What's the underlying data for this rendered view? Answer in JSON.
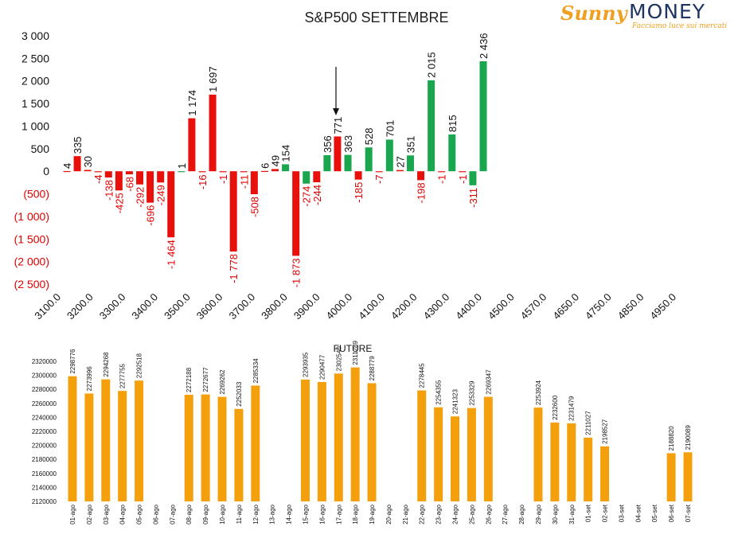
{
  "logo": {
    "brand_script": "Sunny",
    "brand_main": "MONEY",
    "tagline": "Facciamo luce sui mercati"
  },
  "colors": {
    "positive": "#1aa64e",
    "negative": "#e8100a",
    "future_bar": "#f4a00c",
    "axis_text": "#333333",
    "negative_axis_text": "#e00000"
  },
  "chart_data": [
    {
      "type": "bar",
      "title": "S&P500 SETTEMBRE",
      "x_tick_labels": [
        "3100.0",
        "3200.0",
        "3300.0",
        "3400.0",
        "3500.0",
        "3600.0",
        "3700.0",
        "3800.0",
        "3900.0",
        "4000.0",
        "4100.0",
        "4200.0",
        "4300.0",
        "4400.0",
        "4500.0",
        "4570.0",
        "4650.0",
        "4750.0",
        "4850.0",
        "4950.0"
      ],
      "y_tick_labels": [
        "3 000",
        "2 500",
        "2 000",
        "1 500",
        "1 000",
        "500",
        "0",
        "(500)",
        "(1 000)",
        "(1 500)",
        "(2 000)",
        "(2 500)"
      ],
      "ylim": [
        -2500,
        3000
      ],
      "grid": false,
      "values": [
        4,
        335,
        30,
        -4,
        -138,
        -425,
        -68,
        -292,
        -696,
        -249,
        -1464,
        1,
        1174,
        -16,
        1697,
        -1,
        -1778,
        -11,
        -508,
        6,
        49,
        154,
        -1873,
        -274,
        -244,
        356,
        771,
        363,
        -185,
        528,
        -7,
        701,
        27,
        351,
        -198,
        2015,
        -1,
        815,
        -1,
        -311,
        2436
      ],
      "labels": [
        "4",
        "335",
        "30",
        "-4",
        "-138",
        "-425",
        "-68",
        "-292",
        "-696",
        "-249",
        "-1 464",
        "1",
        "1 174",
        "-16",
        "1 697",
        "-1",
        "-1 778",
        "-11",
        "-508",
        "6",
        "49",
        "154",
        "-1 873",
        "-274",
        "-244",
        "356",
        "771",
        "363",
        "-185",
        "528",
        "-7",
        "701",
        "27",
        "351",
        "-198",
        "2 015",
        "-1",
        "815",
        "-1",
        "-311",
        "2 436"
      ],
      "colors": [
        "negative",
        "negative",
        "negative",
        "negative",
        "negative",
        "negative",
        "negative",
        "negative",
        "negative",
        "negative",
        "negative",
        "positive",
        "negative",
        "negative",
        "negative",
        "negative",
        "negative",
        "negative",
        "negative",
        "negative",
        "negative",
        "positive",
        "negative",
        "positive",
        "negative",
        "positive",
        "negative",
        "positive",
        "negative",
        "positive",
        "negative",
        "positive",
        "negative",
        "positive",
        "negative",
        "positive",
        "negative",
        "positive",
        "negative",
        "positive",
        "positive"
      ],
      "annotation": "arrow pointing down near 3950"
    },
    {
      "type": "bar",
      "title": "FUTURE",
      "categories": [
        "01-ago",
        "02-ago",
        "03-ago",
        "04-ago",
        "05-ago",
        "06-ago",
        "07-ago",
        "08-ago",
        "09-ago",
        "10-ago",
        "11-ago",
        "12-ago",
        "13-ago",
        "14-ago",
        "15-ago",
        "16-ago",
        "17-ago",
        "18-ago",
        "19-ago",
        "20-ago",
        "21-ago",
        "22-ago",
        "23-ago",
        "24-ago",
        "25-ago",
        "26-ago",
        "27-ago",
        "28-ago",
        "29-ago",
        "30-ago",
        "31-ago",
        "01-set",
        "02-set",
        "03-set",
        "04-set",
        "05-set",
        "06-set",
        "07-set"
      ],
      "values": [
        2298776,
        2273996,
        2294268,
        2277755,
        2292518,
        null,
        null,
        2272188,
        2272677,
        2269262,
        2252033,
        2285334,
        null,
        null,
        2293935,
        2290477,
        2302540,
        2311289,
        2288779,
        null,
        null,
        2278445,
        2254355,
        2241323,
        2253329,
        2269347,
        null,
        null,
        2253924,
        2232600,
        2231479,
        2211027,
        2198527,
        null,
        null,
        null,
        2188820,
        2190089
      ],
      "labels": [
        "2298776",
        "2273996",
        "2294268",
        "2277755",
        "2292518",
        "",
        "",
        "2272188",
        "2272677",
        "2269262",
        "2252033",
        "2285334",
        "",
        "",
        "2293935",
        "2290477",
        "2302540",
        "2311289",
        "2288779",
        "",
        "",
        "2278445",
        "2254355",
        "2241323",
        "2253329",
        "2269347",
        "",
        "",
        "2253924",
        "2232600",
        "2231479",
        "2211027",
        "2198527",
        "",
        "",
        "",
        "2188820",
        "2190089"
      ],
      "y_tick_labels": [
        "2320000",
        "2300000",
        "2280000",
        "2260000",
        "2240000",
        "2220000",
        "2200000",
        "2180000",
        "2160000",
        "2140000",
        "2120000"
      ],
      "ylim": [
        2120000,
        2320000
      ],
      "grid": false
    }
  ]
}
